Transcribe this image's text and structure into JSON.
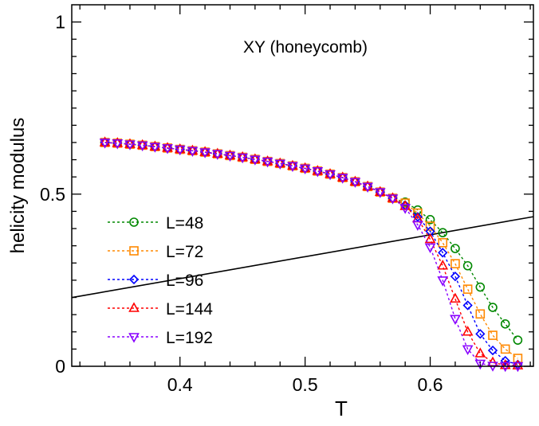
{
  "chart_data": {
    "type": "line",
    "title": "",
    "annotation": "XY (honeycomb)",
    "xlabel": "T",
    "ylabel": "helicity modulus",
    "xlim": [
      0.3135,
      0.6825
    ],
    "ylim": [
      0,
      1.05
    ],
    "xticks": [
      0.4,
      0.5,
      0.6
    ],
    "xtick_labels": [
      "0.4",
      "0.5",
      "0.6"
    ],
    "yticks": [
      0,
      0.5,
      1
    ],
    "ytick_labels": [
      "0",
      "0.5",
      "1"
    ],
    "x_minor_step": 0.02,
    "y_minor_step": 0.05,
    "grid": false,
    "legend_placement": "lower-left",
    "x": [
      0.34,
      0.35,
      0.36,
      0.37,
      0.38,
      0.39,
      0.4,
      0.41,
      0.42,
      0.43,
      0.44,
      0.45,
      0.46,
      0.47,
      0.48,
      0.49,
      0.5,
      0.51,
      0.52,
      0.53,
      0.54,
      0.55,
      0.56,
      0.57,
      0.58,
      0.59,
      0.6,
      0.61,
      0.62,
      0.63,
      0.64,
      0.65,
      0.66,
      0.67
    ],
    "common_low_T": [
      0.65,
      0.648,
      0.645,
      0.642,
      0.638,
      0.634,
      0.63,
      0.626,
      0.622,
      0.617,
      0.612,
      0.607,
      0.601,
      0.595,
      0.589,
      0.582,
      0.575,
      0.567,
      0.558,
      0.548,
      0.536,
      0.522,
      0.506,
      0.488
    ],
    "series": [
      {
        "name": "L=48",
        "color": "#008800",
        "marker": "circle",
        "high_T": [
          0.477,
          0.454,
          0.426,
          0.388,
          0.342,
          0.292,
          0.23,
          0.171,
          0.123,
          0.076
        ]
      },
      {
        "name": "L=72",
        "color": "#ff8800",
        "marker": "square",
        "high_T": [
          0.474,
          0.445,
          0.407,
          0.359,
          0.298,
          0.224,
          0.152,
          0.09,
          0.05,
          0.023
        ]
      },
      {
        "name": "L=96",
        "color": "#0000ff",
        "marker": "diamond",
        "high_T": [
          0.468,
          0.434,
          0.392,
          0.33,
          0.261,
          0.177,
          0.094,
          0.046,
          0.016,
          0.005
        ]
      },
      {
        "name": "L=144",
        "color": "#ff0000",
        "marker": "triangle-up",
        "high_T": [
          0.465,
          0.429,
          0.369,
          0.292,
          0.196,
          0.1,
          0.037,
          0.011,
          0.003,
          0.002
        ]
      },
      {
        "name": "L=192",
        "color": "#8800ff",
        "marker": "triangle-down",
        "high_T": [
          0.46,
          0.411,
          0.346,
          0.25,
          0.138,
          0.05,
          0.008,
          0.002,
          0.001,
          0.001
        ]
      }
    ],
    "reference_line": {
      "formula": "2T/pi",
      "color": "#000000"
    }
  }
}
